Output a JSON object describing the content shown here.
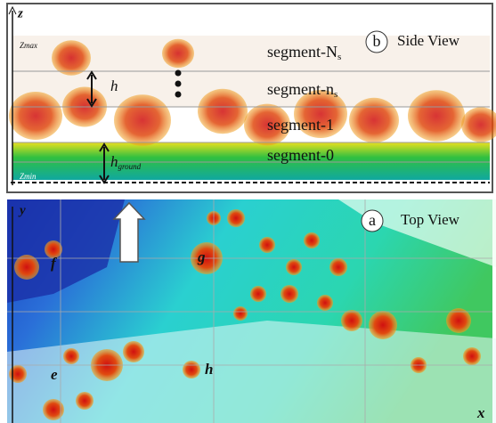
{
  "side_view": {
    "axis": "z",
    "zmax": "Zmax",
    "zmin": "Zmin",
    "panel_letter": "b",
    "title": "Side View",
    "h": "h",
    "h_ground": {
      "text": "h",
      "sub": "ground"
    },
    "segments": [
      {
        "text": "segment-N",
        "sub": "s"
      },
      {
        "text": "segment-n",
        "sub": "s"
      },
      {
        "text": "segment-1",
        "sub": ""
      },
      {
        "text": "segment-0",
        "sub": ""
      }
    ]
  },
  "top_view": {
    "axis_y": "y",
    "axis_x": "x",
    "panel_letter": "a",
    "title": "Top View",
    "labels": [
      "f",
      "g",
      "e",
      "h"
    ]
  }
}
